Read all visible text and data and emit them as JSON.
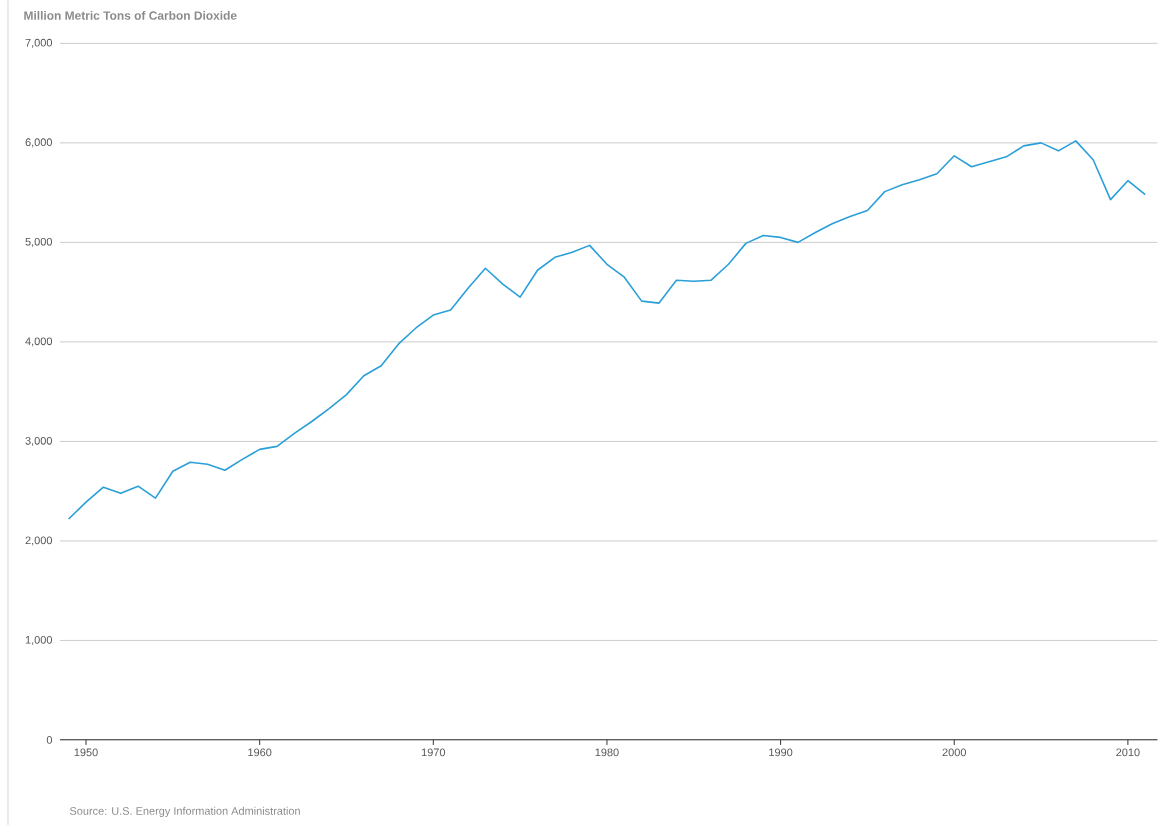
{
  "chart_data": {
    "type": "line",
    "title": "Million Metric Tons of Carbon Dioxide",
    "x": [
      1949,
      1950,
      1951,
      1952,
      1953,
      1954,
      1955,
      1956,
      1957,
      1958,
      1959,
      1960,
      1961,
      1962,
      1963,
      1964,
      1965,
      1966,
      1967,
      1968,
      1969,
      1970,
      1971,
      1972,
      1973,
      1974,
      1975,
      1976,
      1977,
      1978,
      1979,
      1980,
      1981,
      1982,
      1983,
      1984,
      1985,
      1986,
      1987,
      1988,
      1989,
      1990,
      1991,
      1992,
      1993,
      1994,
      1995,
      1996,
      1997,
      1998,
      1999,
      2000,
      2001,
      2002,
      2003,
      2004,
      2005,
      2006,
      2007,
      2008,
      2009,
      2010,
      2011
    ],
    "series": [
      {
        "color": "#2a9fd8",
        "values": [
          2220,
          2390,
          2540,
          2480,
          2550,
          2430,
          2700,
          2790,
          2770,
          2710,
          2820,
          2920,
          2950,
          3080,
          3200,
          3330,
          3470,
          3660,
          3760,
          3980,
          4140,
          4270,
          4320,
          4540,
          4740,
          4580,
          4450,
          4720,
          4850,
          4900,
          4970,
          4780,
          4650,
          4410,
          4390,
          4620,
          4610,
          4620,
          4780,
          4990,
          5070,
          5050,
          5000,
          5100,
          5190,
          5260,
          5320,
          5510,
          5580,
          5630,
          5690,
          5870,
          5760,
          5810,
          5860,
          5970,
          6000,
          5920,
          6020,
          5830,
          5430,
          5620,
          5480
        ]
      }
    ],
    "xlim": [
      1948.5,
      2011.7
    ],
    "ylim": [
      0,
      7000
    ],
    "xticks": [
      1950,
      1960,
      1970,
      1980,
      1990,
      2000,
      2010
    ],
    "yticks": [
      {
        "value": 0,
        "label": "0"
      },
      {
        "value": 1000,
        "label": "1,000"
      },
      {
        "value": 2000,
        "label": "2,000"
      },
      {
        "value": 3000,
        "label": "3,000"
      },
      {
        "value": 4000,
        "label": "4,000"
      },
      {
        "value": 5000,
        "label": "5,000"
      },
      {
        "value": 6000,
        "label": "6,000"
      },
      {
        "value": 7000,
        "label": "7,000"
      }
    ],
    "grid": "y",
    "annotations": [
      "Source: U.S. Energy Information Administration"
    ]
  }
}
